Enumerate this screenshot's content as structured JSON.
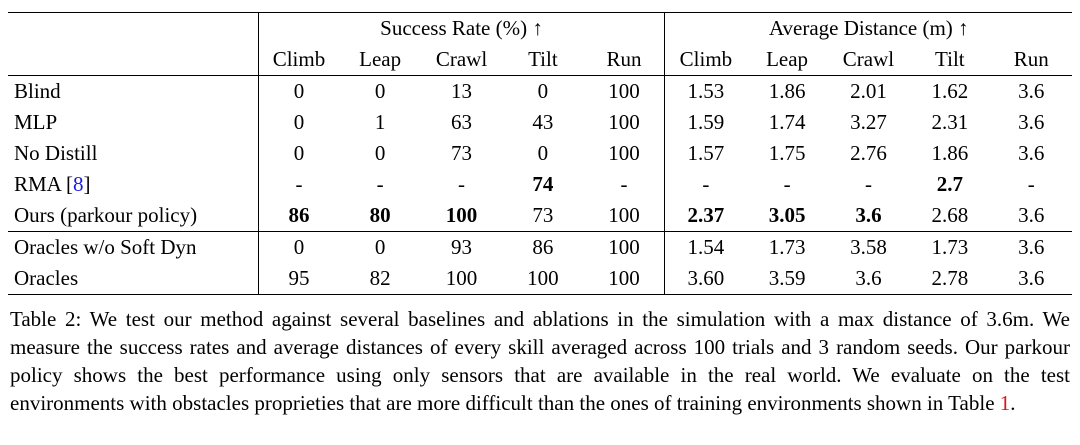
{
  "colors": {
    "citation_blue": "#1b1be0",
    "reference_red": "#e01414",
    "text": "#000000",
    "background": "#ffffff"
  },
  "table": {
    "groups": [
      {
        "label": "Success Rate (%) ↑"
      },
      {
        "label": "Average Distance (m) ↑"
      }
    ],
    "subheaders": [
      "Climb",
      "Leap",
      "Crawl",
      "Tilt",
      "Run"
    ],
    "sections": [
      {
        "rows": [
          {
            "label": "Blind",
            "cite": null,
            "values": [
              "0",
              "0",
              "13",
              "0",
              "100",
              "1.53",
              "1.86",
              "2.01",
              "1.62",
              "3.6"
            ],
            "bold": []
          },
          {
            "label": "MLP",
            "cite": null,
            "values": [
              "0",
              "1",
              "63",
              "43",
              "100",
              "1.59",
              "1.74",
              "3.27",
              "2.31",
              "3.6"
            ],
            "bold": []
          },
          {
            "label": "No Distill",
            "cite": null,
            "values": [
              "0",
              "0",
              "73",
              "0",
              "100",
              "1.57",
              "1.75",
              "2.76",
              "1.86",
              "3.6"
            ],
            "bold": []
          },
          {
            "label": "RMA",
            "cite": "8",
            "values": [
              "-",
              "-",
              "-",
              "74",
              "-",
              "-",
              "-",
              "-",
              "2.7",
              "-"
            ],
            "bold": [
              3,
              8
            ]
          },
          {
            "label": "Ours (parkour policy)",
            "cite": null,
            "values": [
              "86",
              "80",
              "100",
              "73",
              "100",
              "2.37",
              "3.05",
              "3.6",
              "2.68",
              "3.6"
            ],
            "bold": [
              0,
              1,
              2,
              5,
              6,
              7
            ]
          }
        ]
      },
      {
        "rows": [
          {
            "label": "Oracles w/o Soft Dyn",
            "cite": null,
            "values": [
              "0",
              "0",
              "93",
              "86",
              "100",
              "1.54",
              "1.73",
              "3.58",
              "1.73",
              "3.6"
            ],
            "bold": []
          },
          {
            "label": "Oracles",
            "cite": null,
            "values": [
              "95",
              "82",
              "100",
              "100",
              "100",
              "3.60",
              "3.59",
              "3.6",
              "2.78",
              "3.6"
            ],
            "bold": []
          }
        ]
      }
    ]
  },
  "caption": {
    "text_before_ref": "Table 2: We test our method against several baselines and ablations in the simulation with a max distance of 3.6m. We measure the success rates and average distances of every skill averaged across 100 trials and 3 random seeds. Our parkour policy shows the best performance using only sensors that are available in the real world. We evaluate on the test environments with obstacles proprieties that are more difficult than the ones of training environments shown in Table ",
    "ref": "1",
    "text_after_ref": "."
  }
}
